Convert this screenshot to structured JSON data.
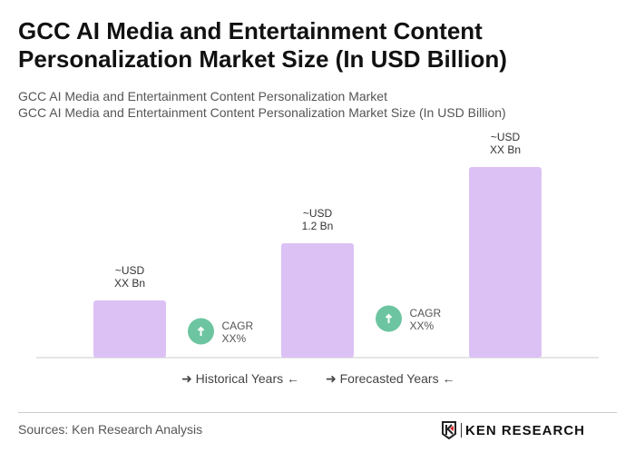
{
  "title": "GCC AI Media and Entertainment Content Personalization Market Size (In USD Billion)",
  "subtitle1": "GCC AI Media and Entertainment Content Personalization Market",
  "subtitle2": "GCC AI Media and Entertainment Content Personalization Market Size (In USD Billion)",
  "chart_data": {
    "type": "bar",
    "categories": [
      "",
      "",
      ""
    ],
    "values": [
      0.6,
      1.2,
      2.0
    ],
    "data_labels": [
      [
        "~USD",
        "XX Bn"
      ],
      [
        "~USD",
        "1.2 Bn"
      ],
      [
        "~USD",
        "XX Bn"
      ]
    ],
    "cagr_labels": [
      [
        "CAGR",
        "XX%"
      ],
      [
        "CAGR",
        "XX%"
      ]
    ],
    "ylim": [
      0,
      2.1
    ],
    "grid": false,
    "bar_color": "#dcc1f5",
    "cagr_color": "#6cc5a0"
  },
  "legend": {
    "historical": "Historical Years",
    "forecasted": "Forecasted Years"
  },
  "sources": "Sources: Ken Research Analysis",
  "logo_text": "KEN RESEARCH"
}
